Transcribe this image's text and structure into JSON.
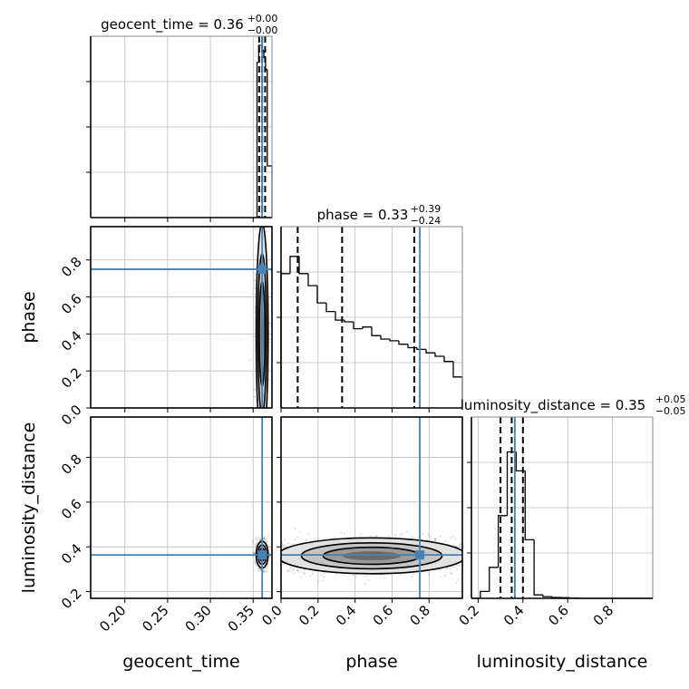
{
  "chart_data": {
    "type": "corner",
    "parameters": [
      "geocent_time",
      "phase",
      "luminosity_distance"
    ],
    "axis_labels": {
      "geocent_time": "geocent_time",
      "phase": "phase",
      "luminosity_distance": "luminosity_distance"
    },
    "ranges": {
      "geocent_time": [
        0.16,
        0.372
      ],
      "phase": [
        0.0,
        0.98
      ],
      "luminosity_distance": [
        0.17,
        0.98
      ]
    },
    "ticks": {
      "geocent_time": [
        0.2,
        0.25,
        0.3,
        0.35
      ],
      "phase": [
        0.0,
        0.2,
        0.4,
        0.6,
        0.8
      ],
      "luminosity_distance": [
        0.2,
        0.4,
        0.6,
        0.8
      ]
    },
    "tick_labels": {
      "geocent_time": [
        "0.20",
        "0.25",
        "0.30",
        "0.35"
      ],
      "phase": [
        "0.0",
        "0.2",
        "0.4",
        "0.6",
        "0.8"
      ],
      "luminosity_distance": [
        "0.2",
        "0.4",
        "0.6",
        "0.8"
      ]
    },
    "truths": {
      "geocent_time": 0.3605,
      "phase": 0.75,
      "luminosity_distance": 0.364
    },
    "marginals": [
      {
        "parameter": "geocent_time",
        "title_main": "geocent_time = 0.36",
        "title_plus": "+0.00",
        "title_minus": "−0.00",
        "quantiles": [
          0.357,
          0.3605,
          0.364
        ],
        "bin_edges": [
          0.3545,
          0.3565,
          0.3585,
          0.3605,
          0.3625,
          0.3645,
          0.3665,
          0.3685,
          0.372
        ],
        "counts": [
          0.9,
          1.0,
          1.0,
          0.97,
          0.93,
          0.86,
          0.3,
          0.3
        ]
      },
      {
        "parameter": "phase",
        "title_main": "phase = 0.33",
        "title_plus": "+0.39",
        "title_minus": "−0.24",
        "quantiles": [
          0.09,
          0.33,
          0.72
        ],
        "bin_edges": [
          0.0,
          0.049,
          0.098,
          0.147,
          0.196,
          0.245,
          0.294,
          0.343,
          0.392,
          0.441,
          0.49,
          0.539,
          0.588,
          0.637,
          0.686,
          0.735,
          0.784,
          0.833,
          0.882,
          0.931,
          0.98
        ],
        "counts": [
          0.78,
          0.88,
          0.78,
          0.71,
          0.61,
          0.56,
          0.51,
          0.5,
          0.46,
          0.47,
          0.42,
          0.4,
          0.39,
          0.37,
          0.35,
          0.34,
          0.32,
          0.3,
          0.27,
          0.18
        ]
      },
      {
        "parameter": "luminosity_distance",
        "title_main": "luminosity_distance = 0.35",
        "title_plus": "+0.05",
        "title_minus": "−0.05",
        "quantiles": [
          0.3,
          0.35,
          0.4
        ],
        "bin_edges": [
          0.17,
          0.21,
          0.25,
          0.29,
          0.33,
          0.37,
          0.41,
          0.45,
          0.49,
          0.53,
          0.57,
          0.61,
          0.65,
          0.98
        ],
        "counts": [
          0.0,
          0.04,
          0.18,
          0.48,
          0.85,
          0.74,
          0.34,
          0.02,
          0.01,
          0.005,
          0.004,
          0.002,
          0.0
        ]
      }
    ],
    "joint_2d": [
      {
        "x": "geocent_time",
        "y": "phase",
        "density_center": [
          0.3605,
          0.4
        ],
        "density_spread": [
          0.0035,
          0.3
        ]
      },
      {
        "x": "geocent_time",
        "y": "luminosity_distance",
        "density_center": [
          0.3605,
          0.365
        ],
        "density_spread": [
          0.0035,
          0.03
        ]
      },
      {
        "x": "phase",
        "y": "luminosity_distance",
        "density_center": [
          0.4,
          0.36
        ],
        "density_spread": [
          0.3,
          0.04
        ]
      }
    ],
    "colors": {
      "truth": "#4682b4",
      "quantile": "#000000",
      "histogram": "#000000",
      "grid": "#bbbbbb",
      "density_dark": "#333333"
    },
    "grid": true
  }
}
